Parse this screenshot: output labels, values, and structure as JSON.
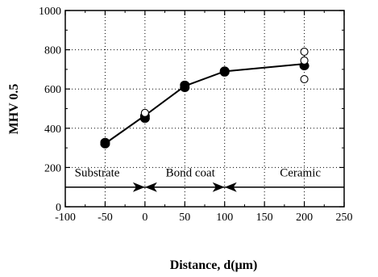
{
  "chart_data": {
    "type": "scatter",
    "xlabel": "Distance, d(μm)",
    "ylabel": "MHV 0.5",
    "xlim": [
      -100,
      250
    ],
    "ylim": [
      0,
      1000
    ],
    "xticks": [
      -100,
      -50,
      0,
      50,
      100,
      150,
      200,
      250
    ],
    "yticks": [
      0,
      200,
      400,
      600,
      800,
      1000
    ],
    "grid": "dotted",
    "series": [
      {
        "marker": "filled-circle",
        "points": [
          {
            "x": -50,
            "y": 320
          },
          {
            "x": -50,
            "y": 328
          },
          {
            "x": 0,
            "y": 450
          },
          {
            "x": 0,
            "y": 462
          },
          {
            "x": 50,
            "y": 607
          },
          {
            "x": 50,
            "y": 620
          },
          {
            "x": 100,
            "y": 686
          },
          {
            "x": 100,
            "y": 692
          },
          {
            "x": 200,
            "y": 718
          }
        ]
      },
      {
        "marker": "open-circle",
        "points": [
          {
            "x": 0,
            "y": 478
          },
          {
            "x": 200,
            "y": 790
          },
          {
            "x": 200,
            "y": 745
          },
          {
            "x": 200,
            "y": 650
          }
        ]
      }
    ],
    "trend_line": [
      {
        "x": -50,
        "y": 322
      },
      {
        "x": 0,
        "y": 465
      },
      {
        "x": 50,
        "y": 615
      },
      {
        "x": 100,
        "y": 690
      },
      {
        "x": 200,
        "y": 728
      }
    ],
    "regions": [
      {
        "label": "Substrate",
        "from": -100,
        "to": 0,
        "label_x": -60,
        "label_y": 155
      },
      {
        "label": "Bond coat",
        "from": 0,
        "to": 100,
        "label_x": 57,
        "label_y": 155
      },
      {
        "label": "Ceramic",
        "from": 100,
        "to": 250,
        "label_x": 195,
        "label_y": 155
      }
    ],
    "region_line_y": 100
  }
}
